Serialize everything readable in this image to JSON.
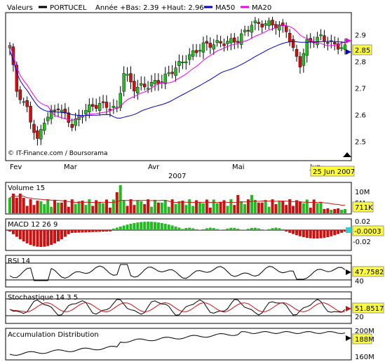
{
  "chart_data": {
    "type": "candlestick",
    "legend": {
      "values_label": "Valeurs",
      "ticker": "PORTUCEL",
      "range_text": "Année +Bas: 2.39 +Haut: 2.96",
      "ma50_label": "MA50",
      "ma20_label": "MA20"
    },
    "colors": {
      "up": "#22bb22",
      "down": "#cc1111",
      "ma50": "#0000cc",
      "ma20": "#ee00ee",
      "highlight": "#ffff33"
    },
    "credit": "© IT-Finance.com / Boursorama",
    "year_label": "2007",
    "date_label": "25 Jun 2007",
    "month_labels": [
      "Fev",
      "Mar",
      "Avr",
      "Mai",
      "Jun"
    ],
    "price": {
      "ylim": [
        2.43,
        2.98
      ],
      "ticks": [
        "2.9",
        "2.8",
        "2.7",
        "2.6",
        "2.5"
      ],
      "last": "2.85"
    },
    "volume": {
      "title": "Volume 15",
      "ticks": [
        "10M",
        "5M"
      ],
      "last": "711K"
    },
    "macd": {
      "title": "MACD 12 26 9",
      "ticks": [
        "0.02",
        "-0.02"
      ],
      "last": "-0.0003"
    },
    "rsi": {
      "title": "RSI 14",
      "ticks": [
        "40"
      ],
      "last": "47.7582"
    },
    "stochastic": {
      "title": "Stochastique 14 3 5",
      "ticks": [
        "20"
      ],
      "last": "51.8517"
    },
    "accdist": {
      "title": "Accumulation Distribution",
      "ticks": [
        "200M",
        "160M"
      ],
      "last": "188M"
    }
  }
}
